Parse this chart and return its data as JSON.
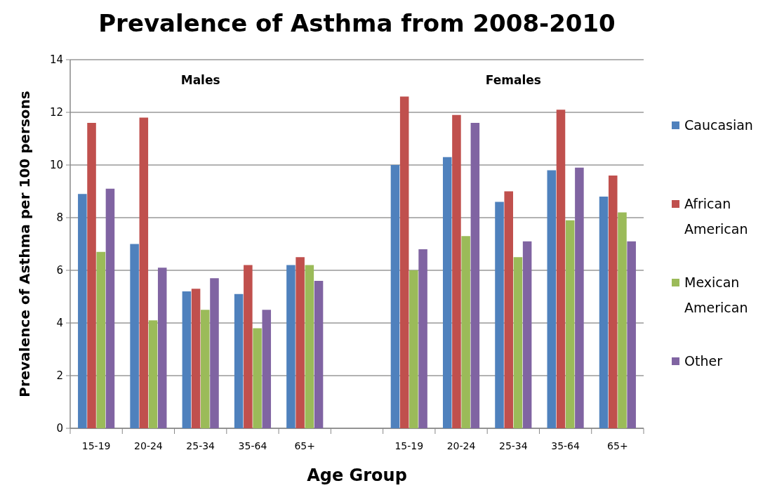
{
  "chart_data": {
    "type": "bar",
    "title": "Prevalence of Asthma from 2008-2010",
    "xlabel": "Age Group",
    "ylabel": "Prevalence of Asthma per 100 persons",
    "categories": [
      "15-19",
      "20-24",
      "25-34",
      "35-64",
      "65+",
      null,
      "15-19",
      "20-24",
      "25-34",
      "35-64",
      "65+"
    ],
    "series": [
      {
        "name": "Caucasian",
        "color": "#4f81bd",
        "values": [
          8.9,
          7.0,
          5.2,
          5.1,
          6.2,
          null,
          10.0,
          10.3,
          8.6,
          9.8,
          8.8
        ]
      },
      {
        "name": "African American",
        "color": "#c0504d",
        "values": [
          11.6,
          11.8,
          5.3,
          6.2,
          6.5,
          null,
          12.6,
          11.9,
          9.0,
          12.1,
          9.6
        ]
      },
      {
        "name": "Mexican American",
        "color": "#9bbb59",
        "values": [
          6.7,
          4.1,
          4.5,
          3.8,
          6.2,
          null,
          6.0,
          7.3,
          6.5,
          7.9,
          8.2
        ]
      },
      {
        "name": "Other",
        "color": "#8064a2",
        "values": [
          9.1,
          6.1,
          5.7,
          4.5,
          5.6,
          null,
          6.8,
          11.6,
          7.1,
          9.9,
          7.1
        ]
      }
    ],
    "annotations": [
      "Males",
      "Females"
    ],
    "ylim": [
      0,
      14
    ],
    "yticks": [
      0,
      2,
      4,
      6,
      8,
      10,
      12,
      14
    ],
    "grid": "y",
    "legend": "right"
  }
}
